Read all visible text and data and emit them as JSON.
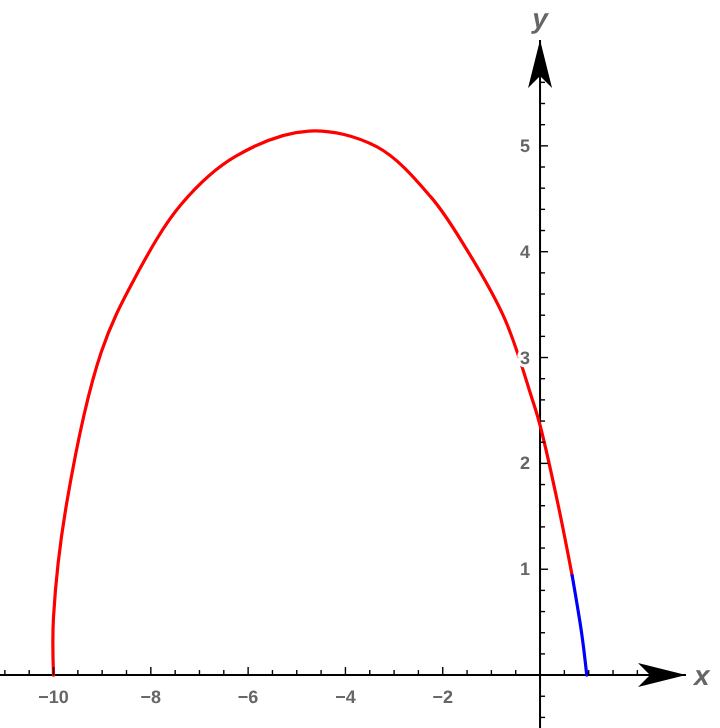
{
  "chart_data": {
    "type": "line",
    "xlabel": "x",
    "ylabel": "y",
    "xlim": [
      -11.1,
      3
    ],
    "ylim": [
      -0.5,
      6
    ],
    "xticks": [
      {
        "value": -11,
        "label": null
      },
      {
        "value": -10.5,
        "label": null
      },
      {
        "value": -10,
        "label": "−10"
      },
      {
        "value": -9.5,
        "label": null
      },
      {
        "value": -9,
        "label": null
      },
      {
        "value": -8.5,
        "label": null
      },
      {
        "value": -8,
        "label": "−8"
      },
      {
        "value": -7.5,
        "label": null
      },
      {
        "value": -7,
        "label": null
      },
      {
        "value": -6.5,
        "label": null
      },
      {
        "value": -6,
        "label": "−6"
      },
      {
        "value": -5.5,
        "label": null
      },
      {
        "value": -5,
        "label": null
      },
      {
        "value": -4.5,
        "label": null
      },
      {
        "value": -4,
        "label": "−4"
      },
      {
        "value": -3.5,
        "label": null
      },
      {
        "value": -3,
        "label": null
      },
      {
        "value": -2.5,
        "label": null
      },
      {
        "value": -2,
        "label": "−2"
      },
      {
        "value": -1.5,
        "label": null
      },
      {
        "value": -1,
        "label": null
      },
      {
        "value": -0.5,
        "label": null
      },
      {
        "value": 0.5,
        "label": null
      },
      {
        "value": 1,
        "label": null
      },
      {
        "value": 1.5,
        "label": null
      },
      {
        "value": 2,
        "label": null
      }
    ],
    "yticks": [
      {
        "value": -0.4,
        "label": null
      },
      {
        "value": -0.2,
        "label": null
      },
      {
        "value": 0.2,
        "label": null
      },
      {
        "value": 0.4,
        "label": null
      },
      {
        "value": 0.6,
        "label": null
      },
      {
        "value": 0.8,
        "label": null
      },
      1,
      {
        "value": 1.2,
        "label": null
      },
      {
        "value": 1.4,
        "label": null
      },
      {
        "value": 1.6,
        "label": null
      },
      {
        "value": 1.8,
        "label": null
      },
      2,
      {
        "value": 2.2,
        "label": null
      },
      {
        "value": 2.4,
        "label": null
      },
      {
        "value": 2.6,
        "label": null
      },
      {
        "value": 2.8,
        "label": null
      },
      3,
      {
        "value": 3.2,
        "label": null
      },
      {
        "value": 3.4,
        "label": null
      },
      {
        "value": 3.6,
        "label": null
      },
      {
        "value": 3.8,
        "label": null
      },
      4,
      {
        "value": 4.2,
        "label": null
      },
      {
        "value": 4.4,
        "label": null
      },
      {
        "value": 4.6,
        "label": null
      },
      {
        "value": 4.8,
        "label": null
      },
      5,
      {
        "value": 5.2,
        "label": null
      },
      {
        "value": 5.4,
        "label": null
      },
      {
        "value": 5.6,
        "label": null
      },
      {
        "value": 5.8,
        "label": null
      }
    ],
    "series": [
      {
        "color": "#ff0000",
        "x": [
          -10,
          -10,
          -9.72,
          -9.02,
          -8.33,
          -7.37,
          -6.26,
          -4.75,
          -3.35,
          -2.25,
          -1.56,
          -0.73,
          -0.17,
          0,
          0.38,
          0.66
        ],
        "values": [
          0,
          0.55,
          1.65,
          3.05,
          3.75,
          4.45,
          4.9,
          5.14,
          4.99,
          4.52,
          4.06,
          3.37,
          2.62,
          2.36,
          1.59,
          0.94
        ]
      },
      {
        "color": "#0000ff",
        "x": [
          0.66,
          0.86,
          0.96
        ],
        "values": [
          0.94,
          0.38,
          0
        ]
      }
    ]
  }
}
